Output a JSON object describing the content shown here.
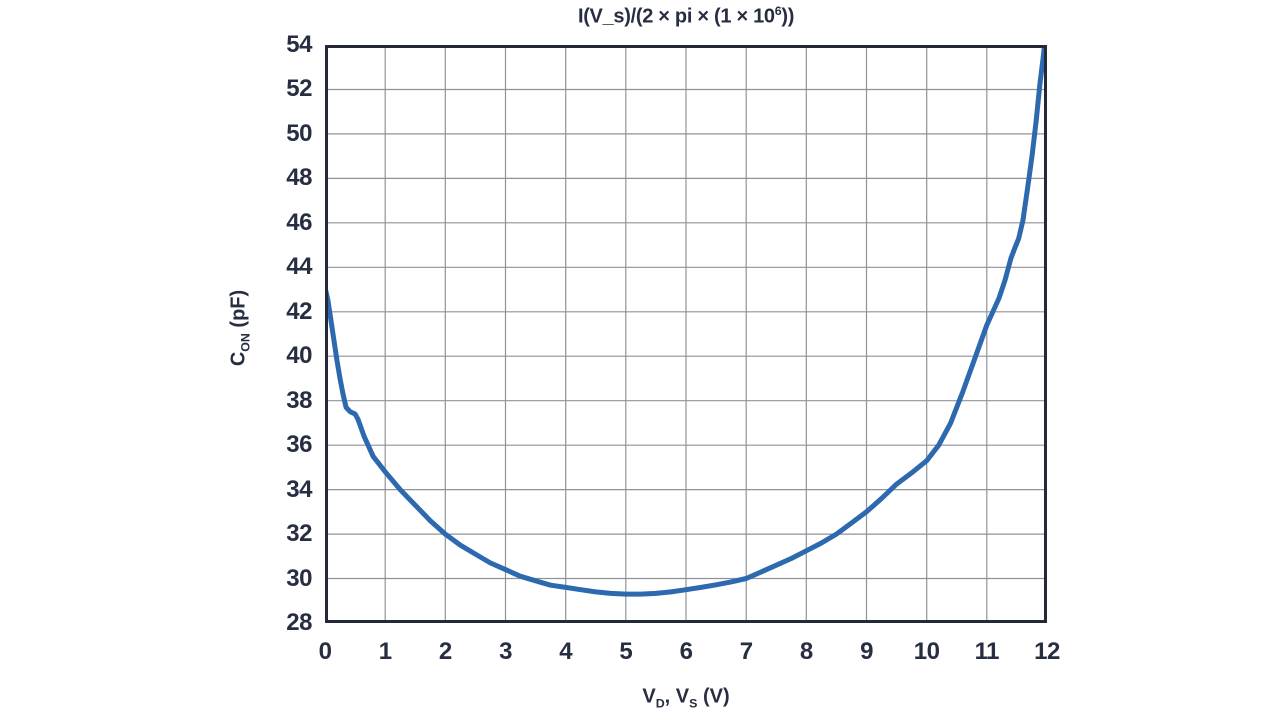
{
  "colors": {
    "background": "#ffffff",
    "text": "#272e42",
    "frame": "#232936",
    "grid": "#8f9299",
    "curve": "#2d69af"
  },
  "chart_data": {
    "type": "line",
    "title": {
      "base": "I(V_s)/(2 × pi × (1 × 10",
      "sup": "6",
      "end": "))"
    },
    "x_axis": {
      "label_parts": {
        "p1": "V",
        "sub1": "D",
        "p2": ", V",
        "sub2": "S",
        "p3": " (V)"
      },
      "range": [
        0,
        12
      ],
      "ticks": [
        0,
        1,
        2,
        3,
        4,
        5,
        6,
        7,
        8,
        9,
        10,
        11,
        12
      ]
    },
    "y_axis": {
      "label_parts": {
        "p1": "C",
        "sub1": "ON",
        "p2": " (pF)"
      },
      "range": [
        28,
        54
      ],
      "ticks": [
        28,
        30,
        32,
        34,
        36,
        38,
        40,
        42,
        44,
        46,
        48,
        50,
        52,
        54
      ]
    },
    "grid": true,
    "legend": "none",
    "series": [
      {
        "name": "C_ON",
        "color": "#2d69af",
        "points": [
          [
            0,
            43.1
          ],
          [
            0.05,
            42.5
          ],
          [
            0.1,
            41.6
          ],
          [
            0.15,
            40.7
          ],
          [
            0.2,
            39.8
          ],
          [
            0.25,
            39.0
          ],
          [
            0.3,
            38.3
          ],
          [
            0.35,
            37.7
          ],
          [
            0.42,
            37.5
          ],
          [
            0.5,
            37.4
          ],
          [
            0.55,
            37.15
          ],
          [
            0.65,
            36.4
          ],
          [
            0.8,
            35.5
          ],
          [
            1,
            34.8
          ],
          [
            1.25,
            34.0
          ],
          [
            1.5,
            33.3
          ],
          [
            1.75,
            32.6
          ],
          [
            2,
            32.0
          ],
          [
            2.25,
            31.5
          ],
          [
            2.5,
            31.1
          ],
          [
            2.75,
            30.7
          ],
          [
            3,
            30.4
          ],
          [
            3.25,
            30.1
          ],
          [
            3.5,
            29.9
          ],
          [
            3.75,
            29.7
          ],
          [
            4,
            29.6
          ],
          [
            4.25,
            29.5
          ],
          [
            4.5,
            29.4
          ],
          [
            4.75,
            29.33
          ],
          [
            5,
            29.3
          ],
          [
            5.25,
            29.3
          ],
          [
            5.5,
            29.33
          ],
          [
            5.75,
            29.4
          ],
          [
            6,
            29.5
          ],
          [
            6.25,
            29.6
          ],
          [
            6.5,
            29.72
          ],
          [
            6.75,
            29.85
          ],
          [
            7,
            30.0
          ],
          [
            7.25,
            30.3
          ],
          [
            7.5,
            30.6
          ],
          [
            7.75,
            30.9
          ],
          [
            8,
            31.25
          ],
          [
            8.25,
            31.6
          ],
          [
            8.5,
            32.0
          ],
          [
            8.75,
            32.5
          ],
          [
            9,
            33.0
          ],
          [
            9.25,
            33.6
          ],
          [
            9.5,
            34.25
          ],
          [
            9.75,
            34.75
          ],
          [
            10,
            35.3
          ],
          [
            10.2,
            36.0
          ],
          [
            10.4,
            37.0
          ],
          [
            10.6,
            38.4
          ],
          [
            10.8,
            39.9
          ],
          [
            11,
            41.4
          ],
          [
            11.2,
            42.6
          ],
          [
            11.3,
            43.4
          ],
          [
            11.4,
            44.4
          ],
          [
            11.47,
            44.9
          ],
          [
            11.53,
            45.3
          ],
          [
            11.6,
            46.1
          ],
          [
            11.68,
            47.6
          ],
          [
            11.75,
            49.0
          ],
          [
            11.82,
            50.6
          ],
          [
            11.88,
            52.2
          ],
          [
            11.93,
            53.3
          ],
          [
            11.96,
            54.0
          ]
        ]
      }
    ]
  }
}
